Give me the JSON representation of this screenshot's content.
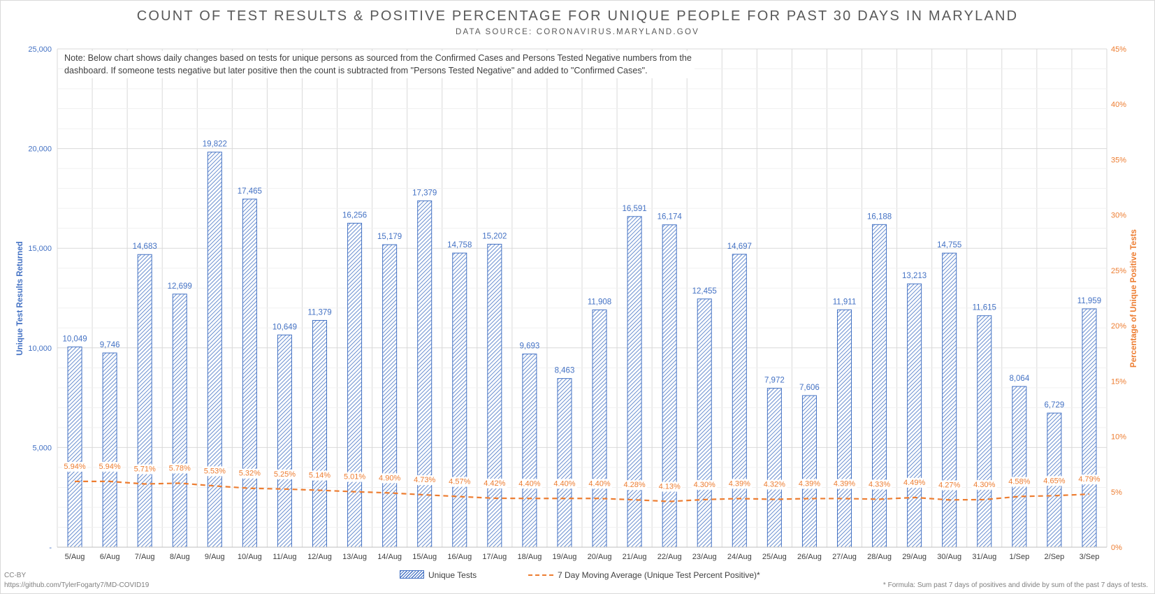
{
  "credits": {
    "license": "CC-BY",
    "url": "https://github.com/TylerFogarty7/MD-COVID19",
    "formula_note": "* Formula: Sum past 7 days of positives and divide by sum of the past 7 days of tests."
  },
  "chart_data": {
    "type": "bar",
    "title": "COUNT OF TEST RESULTS & POSITIVE PERCENTAGE FOR UNIQUE PEOPLE FOR PAST 30 DAYS IN MARYLAND",
    "subtitle": "DATA SOURCE: CORONAVIRUS.MARYLAND.GOV",
    "note": "Note: Below chart shows daily changes based on tests for unique persons as sourced from the Confirmed Cases and Persons Tested Negative numbers from the dashboard. If someone tests negative but later positive then the count is subtracted from \"Persons Tested Negative\" and added to \"Confirmed Cases\".",
    "ylabel": "Unique Test Results Returned",
    "y2label": "Percentage of Unique Positive Tests",
    "ylim": [
      0,
      25000
    ],
    "y2lim": [
      0,
      45
    ],
    "yticks": [
      "-",
      "5,000",
      "10,000",
      "15,000",
      "20,000",
      "25,000"
    ],
    "y2ticks": [
      "0%",
      "5%",
      "10%",
      "15%",
      "20%",
      "25%",
      "30%",
      "35%",
      "40%",
      "45%"
    ],
    "grid": true,
    "legend_position": "bottom",
    "categories": [
      "5/Aug",
      "6/Aug",
      "7/Aug",
      "8/Aug",
      "9/Aug",
      "10/Aug",
      "11/Aug",
      "12/Aug",
      "13/Aug",
      "14/Aug",
      "15/Aug",
      "16/Aug",
      "17/Aug",
      "18/Aug",
      "19/Aug",
      "20/Aug",
      "21/Aug",
      "22/Aug",
      "23/Aug",
      "24/Aug",
      "25/Aug",
      "26/Aug",
      "27/Aug",
      "28/Aug",
      "29/Aug",
      "30/Aug",
      "31/Aug",
      "1/Sep",
      "2/Sep",
      "3/Sep"
    ],
    "series": [
      {
        "name": "Unique Tests",
        "type": "bar",
        "axis": "left",
        "color": "#4472c4",
        "values": [
          10049,
          9746,
          14683,
          12699,
          19822,
          17465,
          10649,
          11379,
          16256,
          15179,
          17379,
          14758,
          15202,
          9693,
          8463,
          11908,
          16591,
          16174,
          12455,
          14697,
          7972,
          7606,
          11911,
          16188,
          13213,
          14755,
          11615,
          8064,
          6729,
          11959
        ],
        "labels": [
          "10,049",
          "9,746",
          "14,683",
          "12,699",
          "19,822",
          "17,465",
          "10,649",
          "11,379",
          "16,256",
          "15,179",
          "17,379",
          "14,758",
          "15,202",
          "9,693",
          "8,463",
          "11,908",
          "16,591",
          "16,174",
          "12,455",
          "14,697",
          "7,972",
          "7,606",
          "11,911",
          "16,188",
          "13,213",
          "14,755",
          "11,615",
          "8,064",
          "6,729",
          "11,959"
        ]
      },
      {
        "name": "7 Day Moving Average (Unique Test Percent Positive)*",
        "type": "line",
        "axis": "right",
        "color": "#ed7d31",
        "values": [
          5.94,
          5.94,
          5.71,
          5.78,
          5.53,
          5.32,
          5.25,
          5.14,
          5.01,
          4.9,
          4.73,
          4.57,
          4.42,
          4.4,
          4.4,
          4.4,
          4.28,
          4.13,
          4.3,
          4.39,
          4.32,
          4.39,
          4.39,
          4.33,
          4.49,
          4.27,
          4.3,
          4.58,
          4.65,
          4.79
        ],
        "labels": [
          "5.94%",
          "5.94%",
          "5.71%",
          "5.78%",
          "5.53%",
          "5.32%",
          "5.25%",
          "5.14%",
          "5.01%",
          "4.90%",
          "4.73%",
          "4.57%",
          "4.42%",
          "4.40%",
          "4.40%",
          "4.40%",
          "4.28%",
          "4.13%",
          "4.30%",
          "4.39%",
          "4.32%",
          "4.39%",
          "4.39%",
          "4.33%",
          "4.49%",
          "4.27%",
          "4.30%",
          "4.58%",
          "4.65%",
          "4.79%"
        ]
      }
    ]
  }
}
